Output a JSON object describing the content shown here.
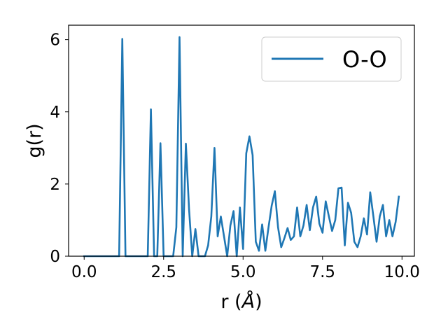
{
  "chart_data": {
    "type": "line",
    "title": "",
    "xlabel": "r (",
    "xlabel_unit": "Å",
    "xlabel_close": ")",
    "ylabel": "g(r)",
    "xlim": [
      -0.49,
      10.39
    ],
    "ylim": [
      0,
      6.4
    ],
    "xticks": [
      0.0,
      2.5,
      5.0,
      7.5,
      10.0
    ],
    "xtick_labels": [
      "0.0",
      "2.5",
      "5.0",
      "7.5",
      "10.0"
    ],
    "yticks": [
      0,
      2,
      4,
      6
    ],
    "ytick_labels": [
      "0",
      "2",
      "4",
      "6"
    ],
    "grid": false,
    "legend": "top-right",
    "series": [
      {
        "name": "O-O",
        "color": "#1f77b4",
        "x": [
          0.0,
          0.1,
          0.2,
          0.3,
          0.4,
          0.5,
          0.6,
          0.7,
          0.8,
          0.9,
          1.0,
          1.1,
          1.2,
          1.3,
          1.4,
          1.5,
          1.6,
          1.7,
          1.8,
          1.9,
          2.0,
          2.1,
          2.2,
          2.3,
          2.4,
          2.5,
          2.6,
          2.7,
          2.8,
          2.9,
          3.0,
          3.1,
          3.2,
          3.3,
          3.4,
          3.5,
          3.6,
          3.7,
          3.8,
          3.9,
          4.0,
          4.1,
          4.2,
          4.3,
          4.4,
          4.5,
          4.6,
          4.7,
          4.8,
          4.9,
          5.0,
          5.1,
          5.2,
          5.3,
          5.4,
          5.5,
          5.6,
          5.7,
          5.8,
          5.9,
          6.0,
          6.1,
          6.2,
          6.3,
          6.4,
          6.5,
          6.6,
          6.7,
          6.8,
          6.9,
          7.0,
          7.1,
          7.2,
          7.3,
          7.4,
          7.5,
          7.6,
          7.7,
          7.8,
          7.9,
          8.0,
          8.1,
          8.2,
          8.3,
          8.4,
          8.5,
          8.6,
          8.7,
          8.8,
          8.9,
          9.0,
          9.1,
          9.2,
          9.3,
          9.4,
          9.5,
          9.6,
          9.7,
          9.8,
          9.9
        ],
        "y": [
          0,
          0,
          0,
          0,
          0,
          0,
          0,
          0,
          0,
          0,
          0,
          0,
          6.02,
          0,
          0,
          0,
          0,
          0,
          0,
          0,
          0,
          4.07,
          0,
          0,
          3.13,
          0,
          0,
          0,
          0,
          0.8,
          6.07,
          0,
          3.12,
          1.3,
          0,
          0.75,
          0,
          0,
          0,
          0.3,
          1.1,
          3.0,
          0.55,
          1.1,
          0.55,
          0,
          0.85,
          1.25,
          0,
          1.35,
          0.2,
          2.85,
          3.32,
          2.8,
          0.4,
          0.15,
          0.88,
          0.15,
          0.8,
          1.4,
          1.8,
          0.8,
          0.25,
          0.5,
          0.78,
          0.45,
          0.55,
          1.35,
          0.55,
          0.85,
          1.42,
          0.72,
          1.35,
          1.65,
          0.9,
          0.65,
          1.52,
          1.1,
          0.7,
          1.0,
          1.88,
          1.9,
          0.3,
          1.48,
          1.2,
          0.4,
          0.25,
          0.55,
          1.05,
          0.6,
          1.77,
          1.1,
          0.4,
          1.1,
          1.42,
          0.55,
          1.0,
          0.55,
          0.95,
          1.65
        ]
      }
    ]
  }
}
